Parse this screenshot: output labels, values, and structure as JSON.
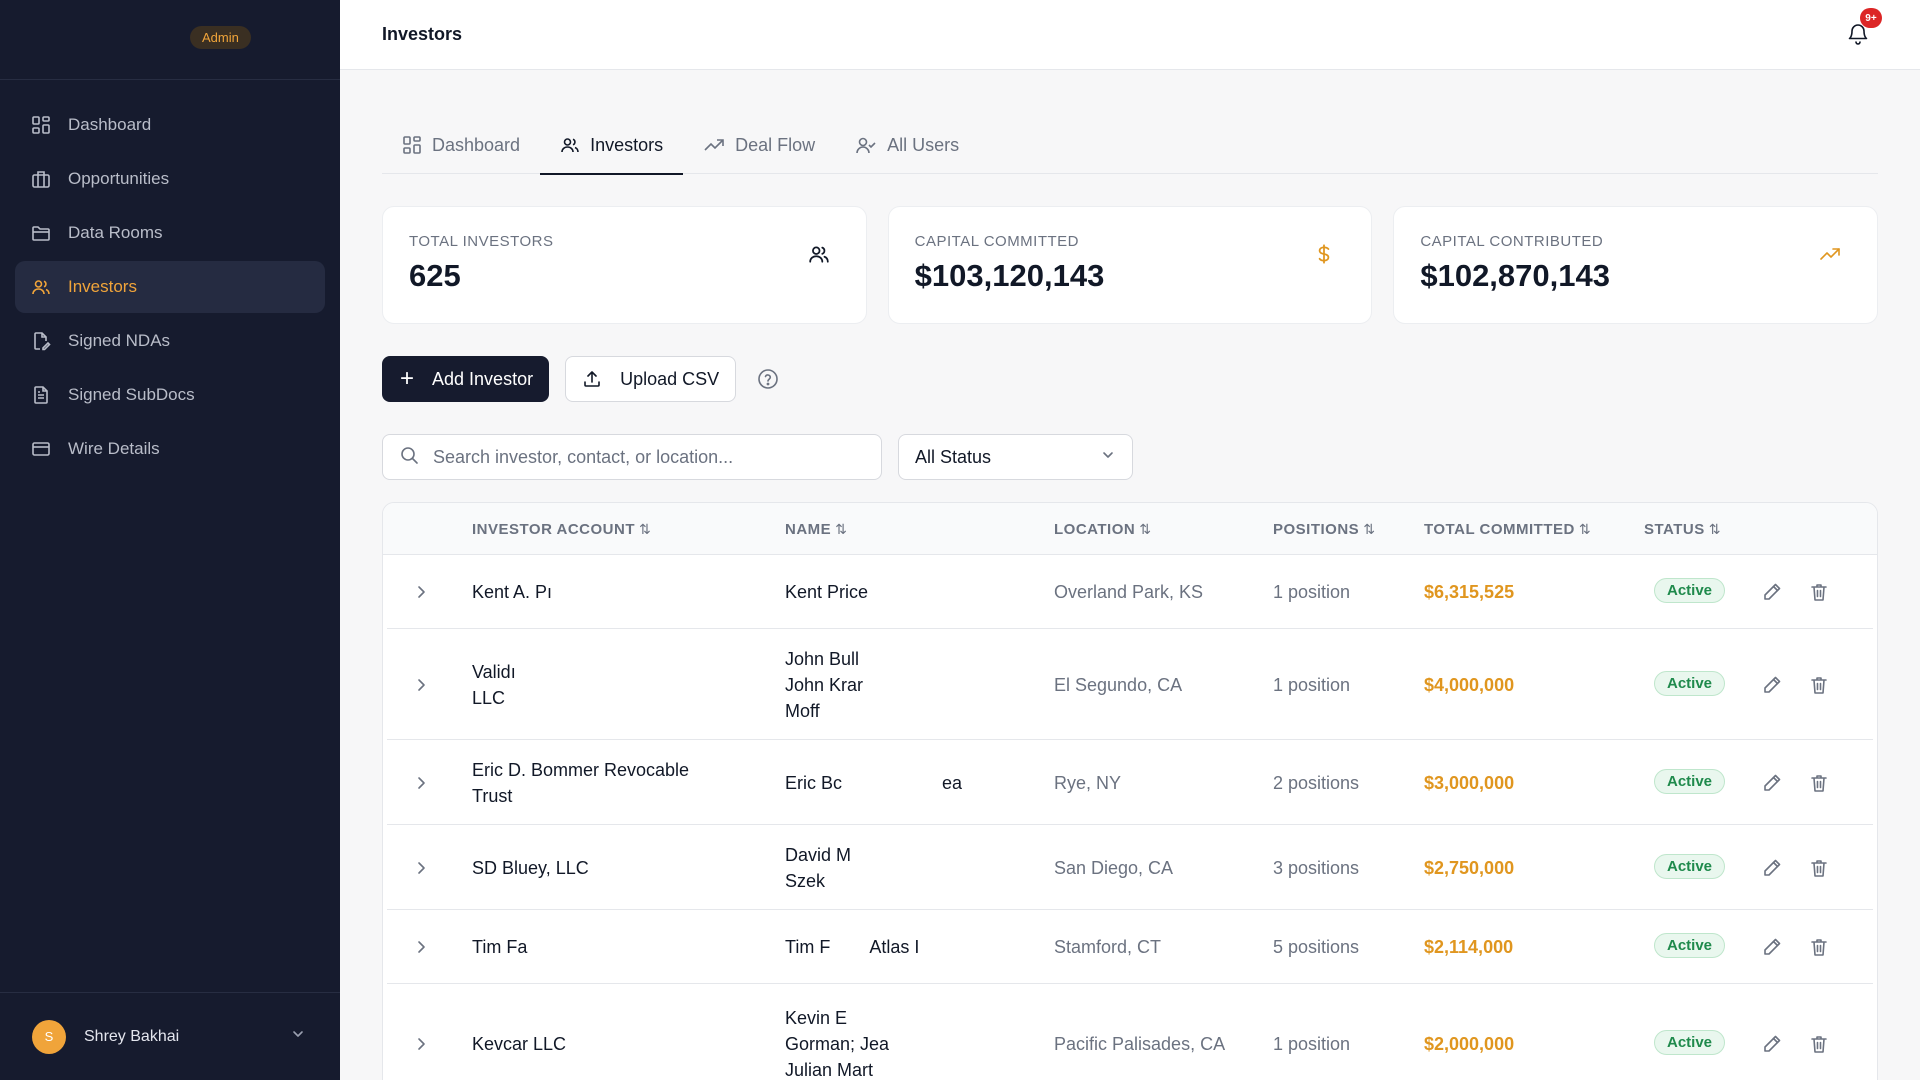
{
  "sidebar": {
    "badge": "Admin",
    "items": [
      {
        "label": "Dashboard"
      },
      {
        "label": "Opportunities"
      },
      {
        "label": "Data Rooms"
      },
      {
        "label": "Investors"
      },
      {
        "label": "Signed NDAs"
      },
      {
        "label": "Signed SubDocs"
      },
      {
        "label": "Wire Details"
      }
    ],
    "active_index": 3,
    "user": {
      "initial": "S",
      "name": "Shrey Bakhai"
    }
  },
  "header": {
    "title": "Investors",
    "notification_count": "9+"
  },
  "tabs": [
    {
      "label": "Dashboard"
    },
    {
      "label": "Investors"
    },
    {
      "label": "Deal Flow"
    },
    {
      "label": "All Users"
    }
  ],
  "stats": [
    {
      "label": "TOTAL INVESTORS",
      "value": "625",
      "icon": "users-icon"
    },
    {
      "label": "CAPITAL COMMITTED",
      "value": "$103,120,143",
      "icon": "dollar-icon"
    },
    {
      "label": "CAPITAL CONTRIBUTED",
      "value": "$102,870,143",
      "icon": "trending-up-icon"
    }
  ],
  "actions": {
    "add_label": "Add Investor",
    "upload_label": "Upload CSV"
  },
  "filters": {
    "search_placeholder": "Search investor, contact, or location...",
    "status_selected": "All Status"
  },
  "table": {
    "columns": [
      "INVESTOR ACCOUNT",
      "NAME",
      "LOCATION",
      "POSITIONS",
      "TOTAL COMMITTED",
      "STATUS"
    ],
    "rows": [
      {
        "account": [
          "Kent A. Pı"
        ],
        "name": [
          "Kent Price"
        ],
        "location": "Overland Park, KS",
        "positions": "1 position",
        "committed": "$6,315,525",
        "status": "Active"
      },
      {
        "account": [
          "Validı",
          "LLC"
        ],
        "name": [
          "John Bull",
          "John Krar",
          "Moff"
        ],
        "location": "El Segundo, CA",
        "positions": "1 position",
        "committed": "$4,000,000",
        "status": "Active"
      },
      {
        "account": [
          "Eric D. Bommer Revocable",
          "Trust"
        ],
        "name": [
          "Eric Bc                    ea"
        ],
        "location": "Rye, NY",
        "positions": "2 positions",
        "committed": "$3,000,000",
        "status": "Active"
      },
      {
        "account": [
          "SD Bluey, LLC"
        ],
        "name": [
          "David M",
          "Szek"
        ],
        "location": "San Diego, CA",
        "positions": "3 positions",
        "committed": "$2,750,000",
        "status": "Active"
      },
      {
        "account": [
          "Tim Fa"
        ],
        "name": [
          "Tim F        Atlas I"
        ],
        "location": "Stamford, CT",
        "positions": "5 positions",
        "committed": "$2,114,000",
        "status": "Active"
      },
      {
        "account": [
          "Kevcar LLC"
        ],
        "name": [
          "Kevin E",
          "Gorman; Jea",
          "Julian Mart"
        ],
        "location": "Pacific Palisades, CA",
        "positions": "1 position",
        "committed": "$2,000,000",
        "status": "Active"
      }
    ]
  },
  "colors": {
    "sidebar_bg": "#161b2e",
    "accent": "#f0a43a",
    "amount": "#e0961f",
    "active_status": "#1f8a4c"
  }
}
